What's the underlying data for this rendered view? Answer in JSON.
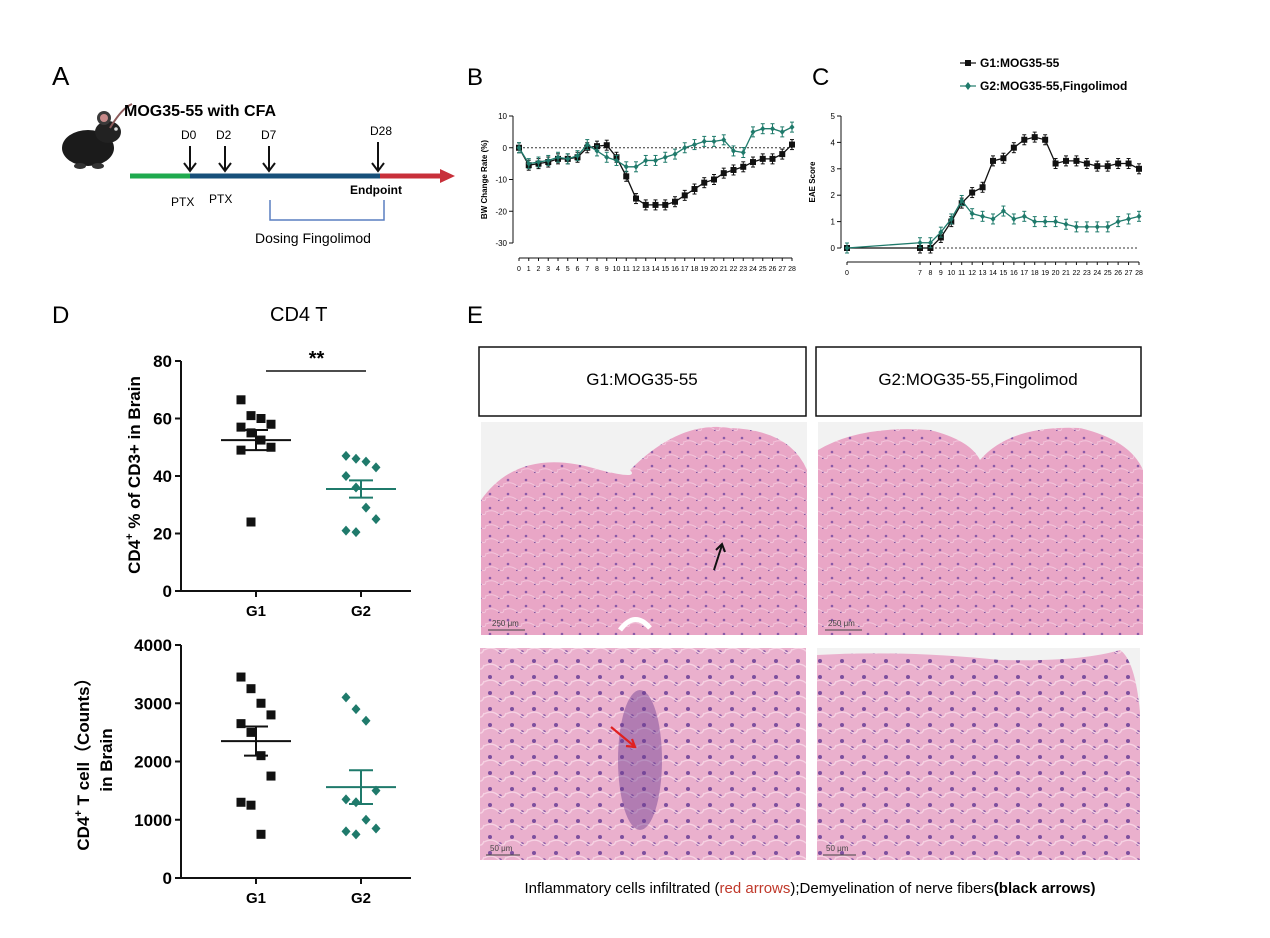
{
  "colors": {
    "g1": "#111111",
    "g2": "#1f7a6b",
    "arrow_red": "#e02020",
    "bar_green": "#1faa4e",
    "bar_blue": "#17507a",
    "bar_red": "#c8303a",
    "bracket": "#5a7fc0",
    "tissue": "#e39bc0"
  },
  "panels": {
    "a": "A",
    "b": "B",
    "c": "C",
    "d": "D",
    "e": "E"
  },
  "legend": {
    "g1": "G1:MOG35-55",
    "g2": "G2:MOG35-55,Fingolimod"
  },
  "timeline": {
    "title": "MOG35-55 with CFA",
    "day_labels": [
      "D0",
      "D2",
      "D7",
      "D28"
    ],
    "ptx_labels": [
      "PTX",
      "PTX"
    ],
    "endpoint": "Endpoint",
    "dosing": "Dosing Fingolimod",
    "icon": "mouse-icon"
  },
  "chart_data": [
    {
      "type": "line",
      "panel": "B",
      "ylabel": "BW Change Rate (%)",
      "xlabel": "",
      "ylim": [
        -30,
        10
      ],
      "yticks": [
        10,
        0,
        -10,
        -20,
        -30
      ],
      "x": [
        0,
        1,
        2,
        3,
        4,
        5,
        6,
        7,
        8,
        9,
        10,
        11,
        12,
        13,
        14,
        15,
        16,
        17,
        18,
        19,
        20,
        21,
        22,
        23,
        24,
        25,
        26,
        27,
        28
      ],
      "series": [
        {
          "name": "G1:MOG35-55",
          "values": [
            0,
            -5.5,
            -5,
            -4.5,
            -3.5,
            -3.5,
            -3,
            0,
            0.5,
            0.8,
            -3,
            -9,
            -16,
            -18,
            -18,
            -18,
            -17,
            -15,
            -13,
            -11,
            -10,
            -8,
            -7,
            -6,
            -4.5,
            -3.5,
            -3.5,
            -2,
            1
          ]
        },
        {
          "name": "G2:MOG35-55,Fingolimod",
          "values": [
            0,
            -5,
            -4.5,
            -4,
            -3,
            -3.5,
            -2.5,
            1,
            -1,
            -3,
            -4,
            -6,
            -6,
            -4,
            -4,
            -3,
            -2,
            0,
            1,
            2,
            2,
            2.5,
            -1,
            -1.5,
            5,
            6,
            6,
            5,
            6.5
          ]
        }
      ]
    },
    {
      "type": "line",
      "panel": "C",
      "ylabel": "EAE Score",
      "xlabel": "",
      "ylim": [
        0,
        5
      ],
      "yticks": [
        0,
        1,
        2,
        3,
        4,
        5
      ],
      "x": [
        0,
        7,
        8,
        9,
        10,
        11,
        12,
        13,
        14,
        15,
        16,
        17,
        18,
        19,
        20,
        21,
        22,
        23,
        24,
        25,
        26,
        27,
        28
      ],
      "x_tick_labels": [
        "0",
        "7",
        "8",
        "9",
        "10",
        "11",
        "12",
        "13",
        "14",
        "15",
        "16",
        "17",
        "18",
        "19",
        "20",
        "21",
        "22",
        "23",
        "24",
        "25",
        "26",
        "27",
        "28"
      ],
      "series": [
        {
          "name": "G1:MOG35-55",
          "values": [
            0,
            0,
            0,
            0.4,
            1,
            1.7,
            2.1,
            2.3,
            3.3,
            3.4,
            3.8,
            4.1,
            4.2,
            4.1,
            3.2,
            3.3,
            3.3,
            3.2,
            3.1,
            3.1,
            3.2,
            3.2,
            3.0
          ]
        },
        {
          "name": "G2:MOG35-55,Fingolimod",
          "values": [
            0,
            0.2,
            0.2,
            0.6,
            1.1,
            1.8,
            1.3,
            1.2,
            1.1,
            1.4,
            1.1,
            1.2,
            1.0,
            1.0,
            1.0,
            0.9,
            0.8,
            0.8,
            0.8,
            0.8,
            1.0,
            1.1,
            1.2
          ]
        }
      ]
    },
    {
      "type": "scatter",
      "panel": "D-top",
      "title": "CD4 T",
      "ylabel_main": "CD4",
      "ylabel_sup": "+",
      "ylabel_rest": " % of CD3+ in Brain",
      "ylim": [
        0,
        80
      ],
      "yticks": [
        0,
        20,
        40,
        60,
        80
      ],
      "categories": [
        "G1",
        "G2"
      ],
      "series": [
        {
          "name": "G1",
          "points": [
            66.5,
            61,
            60,
            58,
            57,
            55,
            52.5,
            50,
            49,
            24
          ],
          "mean": 52.5,
          "sem": 3.5
        },
        {
          "name": "G2",
          "points": [
            47,
            46,
            45,
            43,
            40,
            36,
            29,
            25,
            21,
            20.5
          ],
          "mean": 35.5,
          "sem": 3.0
        }
      ],
      "significance": "**"
    },
    {
      "type": "scatter",
      "panel": "D-bottom",
      "ylabel_main": "CD4",
      "ylabel_sup": "+",
      "ylabel_rest": " T cell（Counts）",
      "ylabel_line2": "in Brain",
      "ylim": [
        0,
        4000
      ],
      "yticks": [
        0,
        1000,
        2000,
        3000,
        4000
      ],
      "categories": [
        "G1",
        "G2"
      ],
      "series": [
        {
          "name": "G1",
          "points": [
            3450,
            3250,
            3000,
            2800,
            2650,
            2500,
            2100,
            1750,
            1300,
            1250,
            750
          ],
          "mean": 2350,
          "sem": 250
        },
        {
          "name": "G2",
          "points": [
            3100,
            2900,
            2700,
            1500,
            1350,
            1300,
            1000,
            850,
            800,
            750
          ],
          "mean": 1560,
          "sem": 290
        }
      ]
    }
  ],
  "histology": {
    "headers": [
      "G1:MOG35-55",
      "G2:MOG35-55,Fingolimod"
    ],
    "scale_top": "250 μm",
    "scale_bottom": "50 μm"
  },
  "caption": {
    "part1": "Inflammatory cells infiltrated (",
    "red": "red arrows",
    "part2": ");Demyelination of nerve fibers",
    "bold": "(black arrows)"
  }
}
